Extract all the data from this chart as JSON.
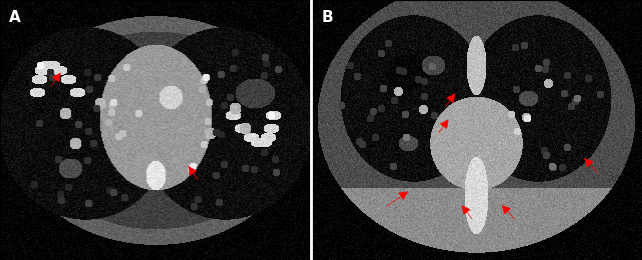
{
  "fig_width": 6.42,
  "fig_height": 2.6,
  "dpi": 100,
  "background_color": "#1a1a1a",
  "label_A": "A",
  "label_B": "B",
  "label_color": "white",
  "label_fontsize": 11,
  "label_fontweight": "bold",
  "arrow_color": "red",
  "panel_split": 0.485
}
